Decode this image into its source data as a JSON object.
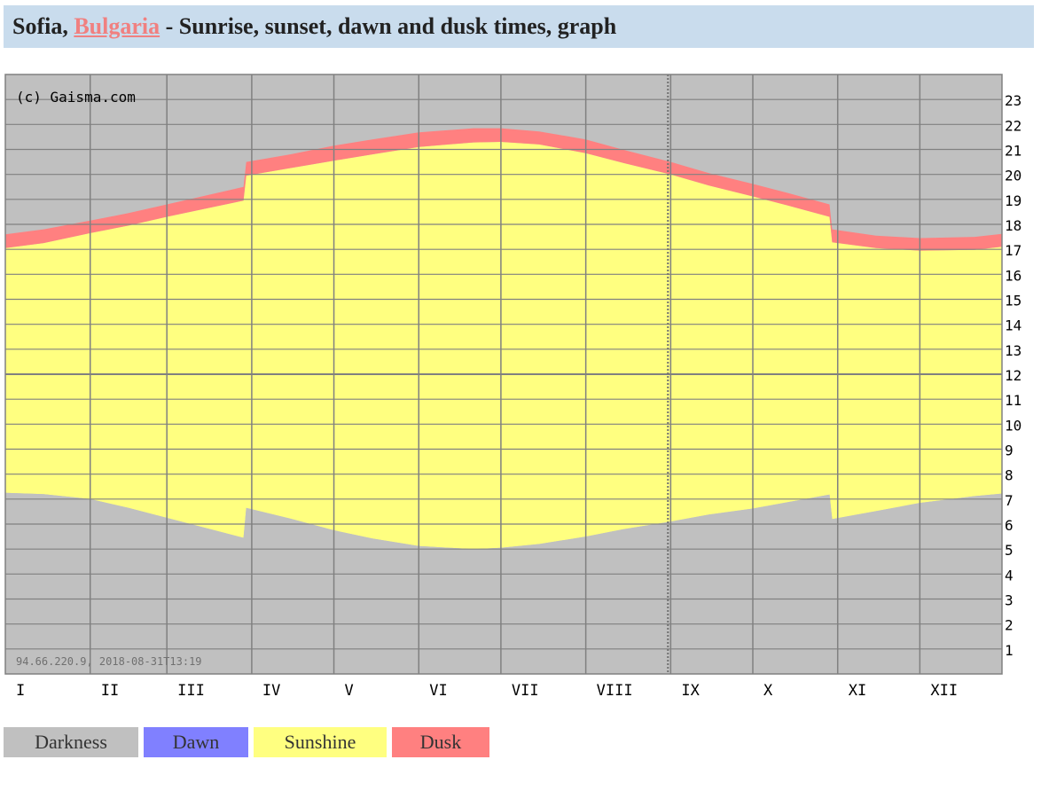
{
  "header": {
    "city": "Sofia, ",
    "country_link": "Bulgaria",
    "title_rest": " - Sunrise, sunset, dawn and dusk times, graph"
  },
  "chart_data": {
    "type": "area",
    "watermark": "(c) Gaisma.com",
    "footer_stamp": "94.66.220.9, 2018-08-31T13:19",
    "y_ticks": [
      "1",
      "2",
      "3",
      "4",
      "5",
      "6",
      "7",
      "8",
      "9",
      "10",
      "11",
      "12",
      "13",
      "14",
      "15",
      "16",
      "17",
      "18",
      "19",
      "20",
      "21",
      "22",
      "23"
    ],
    "months": [
      "I",
      "II",
      "III",
      "IV",
      "V",
      "VI",
      "VII",
      "VIII",
      "IX",
      "X",
      "XI",
      "XII"
    ],
    "ylim": [
      0,
      24
    ],
    "current_date_marker": "2018-08-31",
    "colors": {
      "darkness": "#c0c0c0",
      "dawn": "#8080ff",
      "sunshine": "#ffff80",
      "dusk": "#ff8080",
      "grid": "#808080"
    },
    "day_of_year": [
      1,
      15,
      32,
      46,
      60,
      88,
      89,
      105,
      121,
      135,
      152,
      172,
      182,
      196,
      213,
      227,
      244,
      258,
      274,
      288,
      302,
      303,
      319,
      335,
      355,
      365
    ],
    "dawn_start": [
      7.75,
      7.7,
      7.48,
      7.17,
      6.75,
      5.92,
      7.12,
      6.72,
      6.25,
      5.9,
      5.55,
      5.4,
      5.45,
      5.6,
      5.9,
      6.2,
      6.55,
      6.8,
      7.05,
      7.3,
      7.65,
      6.62,
      6.98,
      7.3,
      7.58,
      7.62
    ],
    "sunrise": [
      7.25,
      7.2,
      7.0,
      6.65,
      6.25,
      5.45,
      6.65,
      6.22,
      5.75,
      5.42,
      5.12,
      5.0,
      5.05,
      5.2,
      5.5,
      5.8,
      6.1,
      6.38,
      6.62,
      6.9,
      7.18,
      6.2,
      6.52,
      6.85,
      7.12,
      7.22
    ],
    "sunset": [
      17.05,
      17.25,
      17.65,
      17.95,
      18.3,
      18.95,
      19.95,
      20.25,
      20.55,
      20.8,
      21.1,
      21.28,
      21.3,
      21.2,
      20.85,
      20.45,
      20.0,
      19.55,
      19.12,
      18.72,
      18.3,
      17.28,
      17.05,
      16.95,
      16.98,
      17.1
    ],
    "dusk_end": [
      17.6,
      17.8,
      18.15,
      18.45,
      18.8,
      19.5,
      20.5,
      20.8,
      21.15,
      21.4,
      21.68,
      21.85,
      21.85,
      21.72,
      21.4,
      20.98,
      20.5,
      20.05,
      19.62,
      19.22,
      18.8,
      17.8,
      17.55,
      17.45,
      17.5,
      17.62
    ]
  },
  "legend": [
    {
      "label": "Darkness",
      "color": "#c0c0c0"
    },
    {
      "label": "Dawn",
      "color": "#8080ff"
    },
    {
      "label": "Sunshine",
      "color": "#ffff80"
    },
    {
      "label": "Dusk",
      "color": "#ff8080"
    }
  ]
}
